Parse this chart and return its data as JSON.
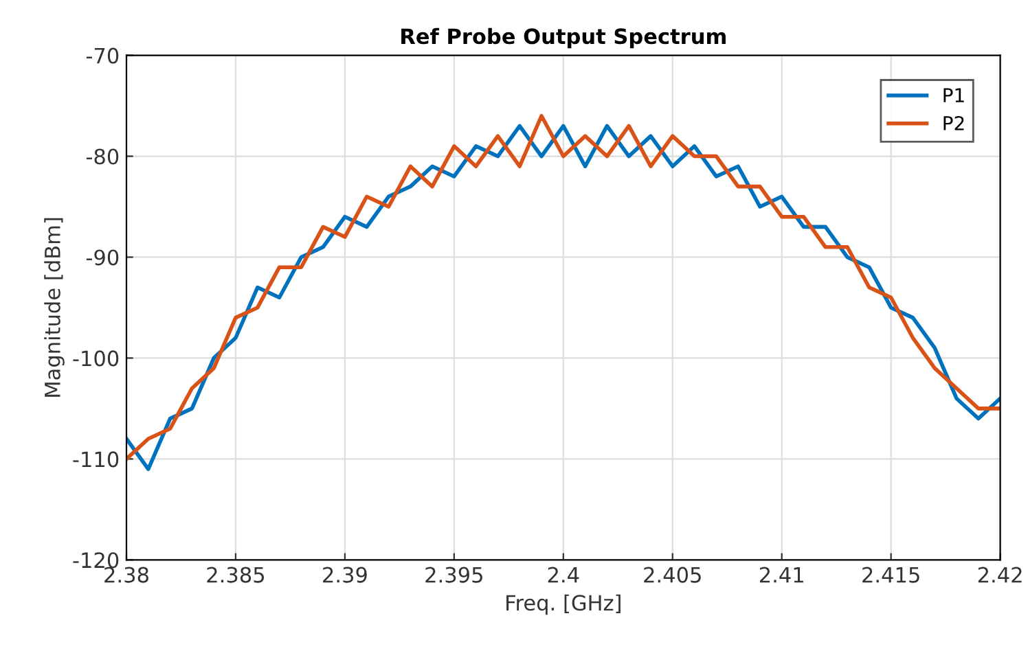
{
  "chart_data": {
    "type": "line",
    "title": "Ref Probe Output Spectrum",
    "xlabel": "Freq. [GHz]",
    "ylabel": "Magnitude [dBm]",
    "x": [
      2.38,
      2.381,
      2.382,
      2.383,
      2.384,
      2.385,
      2.386,
      2.387,
      2.388,
      2.389,
      2.39,
      2.391,
      2.392,
      2.393,
      2.394,
      2.395,
      2.396,
      2.397,
      2.398,
      2.399,
      2.4,
      2.401,
      2.402,
      2.403,
      2.404,
      2.405,
      2.406,
      2.407,
      2.408,
      2.409,
      2.41,
      2.411,
      2.412,
      2.413,
      2.414,
      2.415,
      2.416,
      2.417,
      2.418,
      2.419,
      2.42
    ],
    "series": [
      {
        "name": "P1",
        "color": "#0072bd",
        "values": [
          -108,
          -111,
          -106,
          -105,
          -100,
          -98,
          -93,
          -94,
          -90,
          -89,
          -86,
          -87,
          -84,
          -83,
          -81,
          -82,
          -79,
          -80,
          -77,
          -80,
          -77,
          -81,
          -77,
          -80,
          -78,
          -81,
          -79,
          -82,
          -81,
          -85,
          -84,
          -87,
          -87,
          -90,
          -91,
          -95,
          -96,
          -99,
          -104,
          -106,
          -104
        ]
      },
      {
        "name": "P2",
        "color": "#d95319",
        "values": [
          -110,
          -108,
          -107,
          -103,
          -101,
          -96,
          -95,
          -91,
          -91,
          -87,
          -88,
          -84,
          -85,
          -81,
          -83,
          -79,
          -81,
          -78,
          -81,
          -76,
          -80,
          -78,
          -80,
          -77,
          -81,
          -78,
          -80,
          -80,
          -83,
          -83,
          -86,
          -86,
          -89,
          -89,
          -93,
          -94,
          -98,
          -101,
          -103,
          -105,
          -105
        ]
      }
    ],
    "xlim": [
      2.38,
      2.42
    ],
    "ylim": [
      -120,
      -70
    ],
    "xticks": [
      2.38,
      2.385,
      2.39,
      2.395,
      2.4,
      2.405,
      2.41,
      2.415,
      2.42
    ],
    "yticks": [
      -120,
      -110,
      -100,
      -90,
      -80,
      -70
    ],
    "grid": true,
    "legend": "top right",
    "line_style": "solid",
    "marker": "none"
  }
}
